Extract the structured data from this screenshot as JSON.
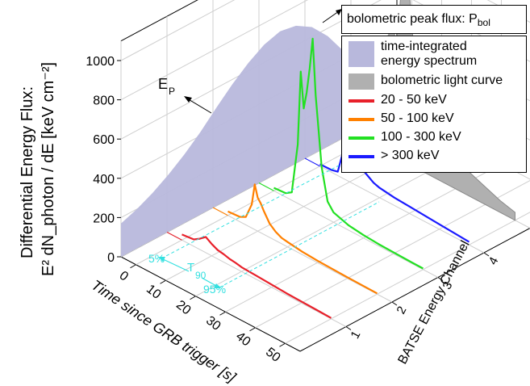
{
  "chart_data": {
    "type": "area",
    "title": "",
    "ylabel_line1": "Differential Energy Flux:",
    "ylabel_line2": "E² dN_photon / dE [keV cm⁻²]",
    "xlabel": "Time since GRB trigger [s]",
    "zlabel": "BATSE Energy Channel",
    "y_ticks": [
      "0",
      "200",
      "400",
      "600",
      "800",
      "1000"
    ],
    "x_ticks": [
      "0",
      "10",
      "20",
      "30",
      "40",
      "50"
    ],
    "z_ticks": [
      "1",
      "2",
      "3",
      "4",
      "All"
    ],
    "ylim": [
      0,
      1100
    ],
    "xlim": [
      -5,
      55
    ],
    "legend_placement": "top-right",
    "annotations": {
      "ep": "E",
      "ep_sub": "P",
      "pbol": "bolometric peak flux: P",
      "pbol_sub": "bol",
      "pct5": "5%",
      "t90": "T",
      "t90_sub": "90",
      "pct95": "95%"
    },
    "series": [
      {
        "name": "time-integrated energy spectrum",
        "color": "#b8b8dc",
        "kind": "spectrum",
        "values": [
          170,
          200,
          240,
          290,
          350,
          420,
          500,
          575,
          640,
          690,
          715,
          700,
          650,
          560,
          440,
          320,
          210,
          120
        ]
      },
      {
        "name": "20 - 50 keV",
        "color": "#e8202a",
        "channel": 1,
        "x": [
          0,
          4,
          6,
          8,
          10,
          12,
          14,
          16,
          18,
          20,
          25,
          30,
          35,
          40,
          45,
          50
        ],
        "values": [
          28,
          35,
          55,
          80,
          60,
          45,
          40,
          32,
          28,
          22,
          18,
          14,
          10,
          8,
          6,
          4
        ]
      },
      {
        "name": "50 - 100 keV",
        "color": "#ff8000",
        "channel": 2,
        "x": [
          0,
          4,
          6,
          8,
          9,
          10,
          11,
          12,
          14,
          16,
          18,
          20,
          25,
          30,
          35,
          40,
          45,
          50
        ],
        "values": [
          20,
          25,
          40,
          120,
          230,
          170,
          150,
          120,
          70,
          45,
          30,
          25,
          15,
          10,
          8,
          6,
          5,
          4
        ]
      },
      {
        "name": "100 - 300 keV",
        "color": "#22e022",
        "channel": 3,
        "x": [
          0,
          4,
          6,
          8,
          9,
          10,
          11,
          12,
          13,
          14,
          16,
          18,
          20,
          25,
          30,
          35,
          40,
          45,
          50
        ],
        "values": [
          15,
          20,
          40,
          300,
          680,
          500,
          590,
          720,
          880,
          600,
          250,
          90,
          50,
          25,
          15,
          10,
          8,
          6,
          5
        ]
      },
      {
        "name": "> 300 keV",
        "color": "#1a1aff",
        "channel": 4,
        "x": [
          0,
          4,
          6,
          8,
          9,
          10,
          11,
          12,
          13,
          14,
          16,
          18,
          20,
          25,
          30,
          35,
          40,
          45,
          50
        ],
        "values": [
          10,
          12,
          20,
          150,
          280,
          150,
          180,
          140,
          120,
          100,
          80,
          60,
          50,
          40,
          35,
          30,
          25,
          20,
          15
        ]
      },
      {
        "name": "bolometric light curve",
        "color": "#b0b0b0",
        "channel": 5,
        "x": [
          0,
          4,
          6,
          8,
          9,
          10,
          11,
          12,
          13,
          14,
          16,
          18,
          20,
          25,
          30,
          35,
          40,
          45,
          50
        ],
        "values": [
          60,
          80,
          150,
          700,
          750,
          550,
          700,
          900,
          1100,
          1000,
          600,
          420,
          320,
          220,
          170,
          120,
          90,
          60,
          40
        ]
      }
    ]
  }
}
